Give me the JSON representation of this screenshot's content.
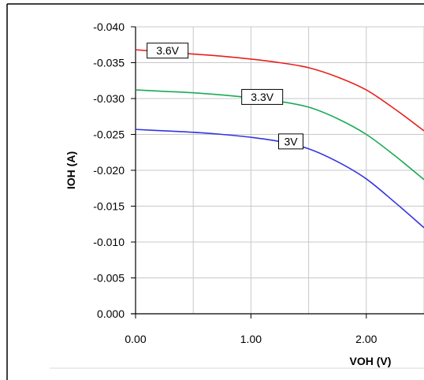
{
  "chart_data": {
    "type": "line",
    "title": "",
    "xlabel": "VOH (V)",
    "ylabel": "IOH (A)",
    "xlim": [
      0,
      2.5
    ],
    "ylim": [
      0,
      -0.04
    ],
    "x_ticks": [
      "0.00",
      "1.00",
      "2.00"
    ],
    "y_ticks": [
      "0.000",
      "-0.005",
      "-0.010",
      "-0.015",
      "-0.020",
      "-0.025",
      "-0.030",
      "-0.035",
      "-0.040"
    ],
    "grid": true,
    "legend": "none",
    "series": [
      {
        "name": "3.6V",
        "color": "#e8201c",
        "x": [
          0,
          0.25,
          0.5,
          0.75,
          1.0,
          1.25,
          1.5,
          1.75,
          2.0,
          2.25,
          2.5
        ],
        "y": [
          -0.0368,
          -0.0365,
          -0.0362,
          -0.0359,
          -0.0355,
          -0.035,
          -0.0343,
          -0.033,
          -0.0312,
          -0.0285,
          -0.0255
        ]
      },
      {
        "name": "3.3V",
        "color": "#1aaa55",
        "x": [
          0,
          0.25,
          0.5,
          0.75,
          1.0,
          1.25,
          1.5,
          1.75,
          2.0,
          2.25,
          2.5
        ],
        "y": [
          -0.0312,
          -0.031,
          -0.0308,
          -0.0305,
          -0.0301,
          -0.0296,
          -0.0288,
          -0.0272,
          -0.025,
          -0.022,
          -0.0187
        ]
      },
      {
        "name": "3V",
        "color": "#3535e0",
        "x": [
          0,
          0.25,
          0.5,
          0.75,
          1.0,
          1.25,
          1.5,
          1.75,
          2.0,
          2.25,
          2.5
        ],
        "y": [
          -0.0257,
          -0.0255,
          -0.0253,
          -0.025,
          -0.0246,
          -0.024,
          -0.023,
          -0.0212,
          -0.0188,
          -0.0155,
          -0.012
        ]
      }
    ]
  }
}
